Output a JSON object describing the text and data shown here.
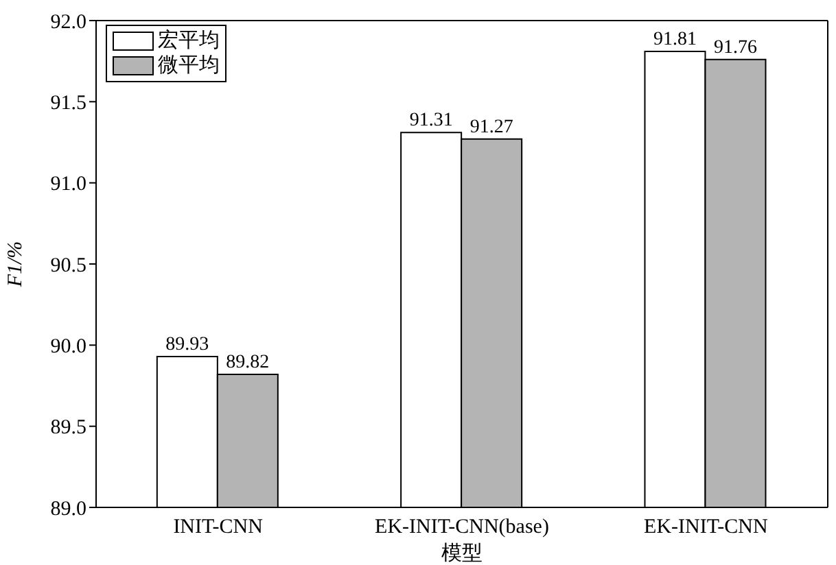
{
  "chart_data": {
    "type": "bar",
    "xlabel": "模型",
    "ylabel": "F1/%",
    "categories": [
      "INIT-CNN",
      "EK-INIT-CNN(base)",
      "EK-INIT-CNN"
    ],
    "series": [
      {
        "name": "宏平均",
        "color": "#ffffff",
        "values": [
          89.93,
          91.31,
          91.81
        ]
      },
      {
        "name": "微平均",
        "color": "#b4b4b4",
        "values": [
          89.82,
          91.27,
          91.76
        ]
      }
    ],
    "ylim": [
      89,
      92
    ],
    "yticks": [
      {
        "value": 89,
        "label": "89.0"
      },
      {
        "value": 89.5,
        "label": "89.5"
      },
      {
        "value": 90,
        "label": "90.0"
      },
      {
        "value": 90.5,
        "label": "90.5"
      },
      {
        "value": 91,
        "label": "91.0"
      },
      {
        "value": 91.5,
        "label": "91.5"
      },
      {
        "value": 92,
        "label": "92.0"
      }
    ],
    "data_labels": true,
    "legend": "top left",
    "grid": false
  }
}
